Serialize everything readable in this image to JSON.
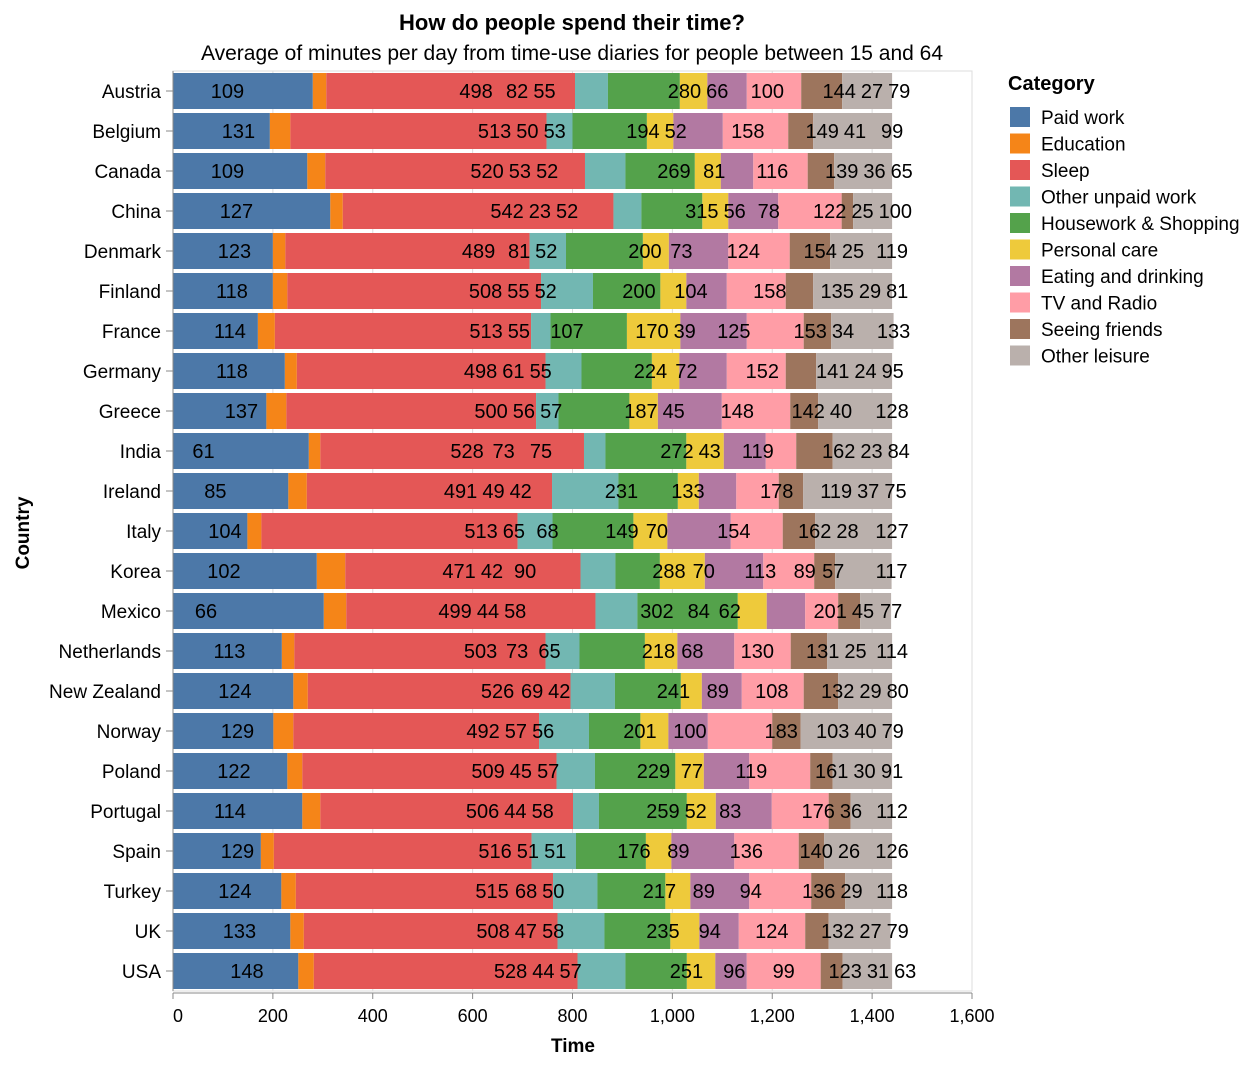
{
  "chart_data": {
    "type": "bar",
    "orientation": "horizontal",
    "stacked": true,
    "title": "How do people spend their time?",
    "subtitle": "Average of minutes per day from time-use diaries for people between 15 and 64",
    "xlabel": "Time",
    "ylabel": "Country",
    "xlim": [
      0,
      1600
    ],
    "xticks": [
      0,
      200,
      400,
      600,
      800,
      1000,
      1200,
      1400,
      1600
    ],
    "xtick_labels": [
      "0",
      "200",
      "400",
      "600",
      "800",
      "1,000",
      "1,200",
      "1,400",
      "1,600"
    ],
    "grid": true,
    "legend": {
      "title": "Category",
      "placement": "right"
    },
    "categories": [
      "Paid work",
      "Education",
      "Sleep",
      "Other unpaid work",
      "Housework & Shopping",
      "Personal care",
      "Eating and drinking",
      "TV and Radio",
      "Seeing friends",
      "Other leisure"
    ],
    "colors": [
      "#4c78a8",
      "#f58518",
      "#e45756",
      "#72b7b2",
      "#54a24b",
      "#eeca3b",
      "#b279a2",
      "#ff9da6",
      "#9d755d",
      "#bab0ac"
    ],
    "label_stack_order": [
      "TV and Radio",
      "Sleep",
      "Seeing friends",
      "Personal care",
      "Paid work",
      "Other unpaid work",
      "Other leisure",
      "Housework & Shopping",
      "Education",
      "Eating and drinking"
    ],
    "countries": [
      "Austria",
      "Belgium",
      "Canada",
      "China",
      "Denmark",
      "Finland",
      "France",
      "Germany",
      "Greece",
      "India",
      "Ireland",
      "Italy",
      "Korea",
      "Mexico",
      "Netherlands",
      "New Zealand",
      "Norway",
      "Poland",
      "Portugal",
      "Spain",
      "Turkey",
      "UK",
      "USA"
    ],
    "values": [
      [
        280,
        27,
        498,
        66,
        144,
        55,
        79,
        109,
        82,
        100
      ],
      [
        194,
        41,
        513,
        52,
        149,
        53,
        99,
        131,
        50,
        158
      ],
      [
        269,
        36,
        520,
        81,
        139,
        52,
        65,
        109,
        53,
        116
      ],
      [
        315,
        25,
        542,
        56,
        122,
        52,
        100,
        127,
        23,
        78
      ],
      [
        200,
        25,
        489,
        73,
        154,
        52,
        119,
        123,
        81,
        124
      ],
      [
        200,
        29,
        508,
        104,
        135,
        52,
        81,
        118,
        55,
        158
      ],
      [
        170,
        34,
        513,
        39,
        153,
        107,
        133,
        114,
        55,
        125
      ],
      [
        224,
        24,
        498,
        72,
        141,
        55,
        95,
        118,
        61,
        152
      ],
      [
        187,
        40,
        500,
        45,
        142,
        57,
        128,
        137,
        56,
        148
      ],
      [
        272,
        23,
        528,
        43,
        162,
        75,
        84,
        61,
        73,
        119
      ],
      [
        231,
        37,
        491,
        133,
        119,
        42,
        75,
        85,
        49,
        178
      ],
      [
        149,
        28,
        513,
        70,
        162,
        68,
        127,
        104,
        65,
        154
      ],
      [
        288,
        57,
        471,
        70,
        89,
        90,
        117,
        102,
        42,
        113
      ],
      [
        302,
        45,
        499,
        84,
        201,
        58,
        77,
        66,
        44,
        62
      ],
      [
        218,
        25,
        503,
        68,
        131,
        65,
        114,
        113,
        73,
        130
      ],
      [
        241,
        29,
        526,
        89,
        132,
        42,
        80,
        124,
        69,
        108
      ],
      [
        201,
        40,
        492,
        100,
        103,
        56,
        79,
        129,
        57,
        183
      ],
      [
        229,
        30,
        509,
        77,
        161,
        57,
        91,
        122,
        45,
        119
      ],
      [
        259,
        36,
        506,
        52,
        176,
        58,
        112,
        114,
        44,
        83
      ],
      [
        176,
        26,
        516,
        89,
        140,
        51,
        126,
        129,
        51,
        136
      ],
      [
        217,
        29,
        515,
        89,
        136,
        50,
        118,
        124,
        68,
        94
      ],
      [
        235,
        27,
        508,
        94,
        132,
        58,
        79,
        133,
        47,
        124
      ],
      [
        251,
        31,
        528,
        96,
        123,
        57,
        63,
        148,
        44,
        99
      ]
    ]
  }
}
